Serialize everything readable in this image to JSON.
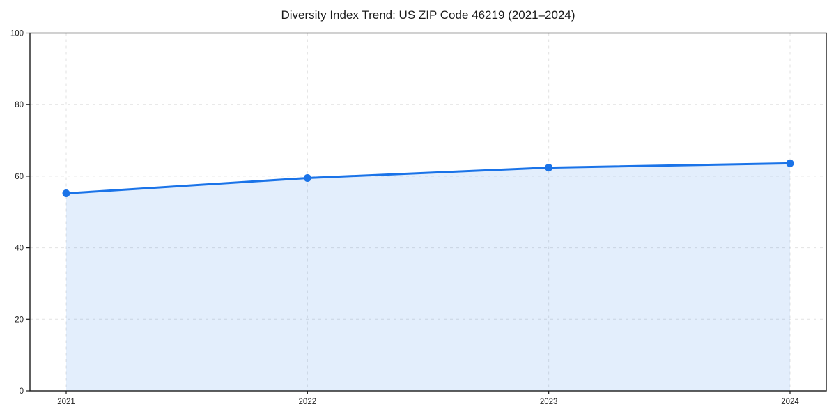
{
  "chart_data": {
    "type": "area",
    "title": "Diversity Index Trend: US ZIP Code 46219 (2021–2024)",
    "categories": [
      "2021",
      "2022",
      "2023",
      "2024"
    ],
    "series": [
      {
        "name": "Diversity Index",
        "values": [
          55.2,
          59.5,
          62.4,
          63.6
        ]
      }
    ],
    "xlabel": "",
    "ylabel": "",
    "ylim": [
      0,
      100
    ],
    "yticks": [
      0,
      20,
      40,
      60,
      80,
      100
    ],
    "grid": {
      "enabled": true,
      "style": "dashed",
      "axes": "both"
    },
    "legend_position": "none",
    "marker": "circle",
    "colors": {
      "line": "#1a73e8",
      "marker": "#1a73e8",
      "area_fill": "#1a73e8",
      "area_opacity": 0.12,
      "grid": "#e2e2e2",
      "spine": "#1a1a1a",
      "tick_text": "#1f1f1f"
    }
  }
}
